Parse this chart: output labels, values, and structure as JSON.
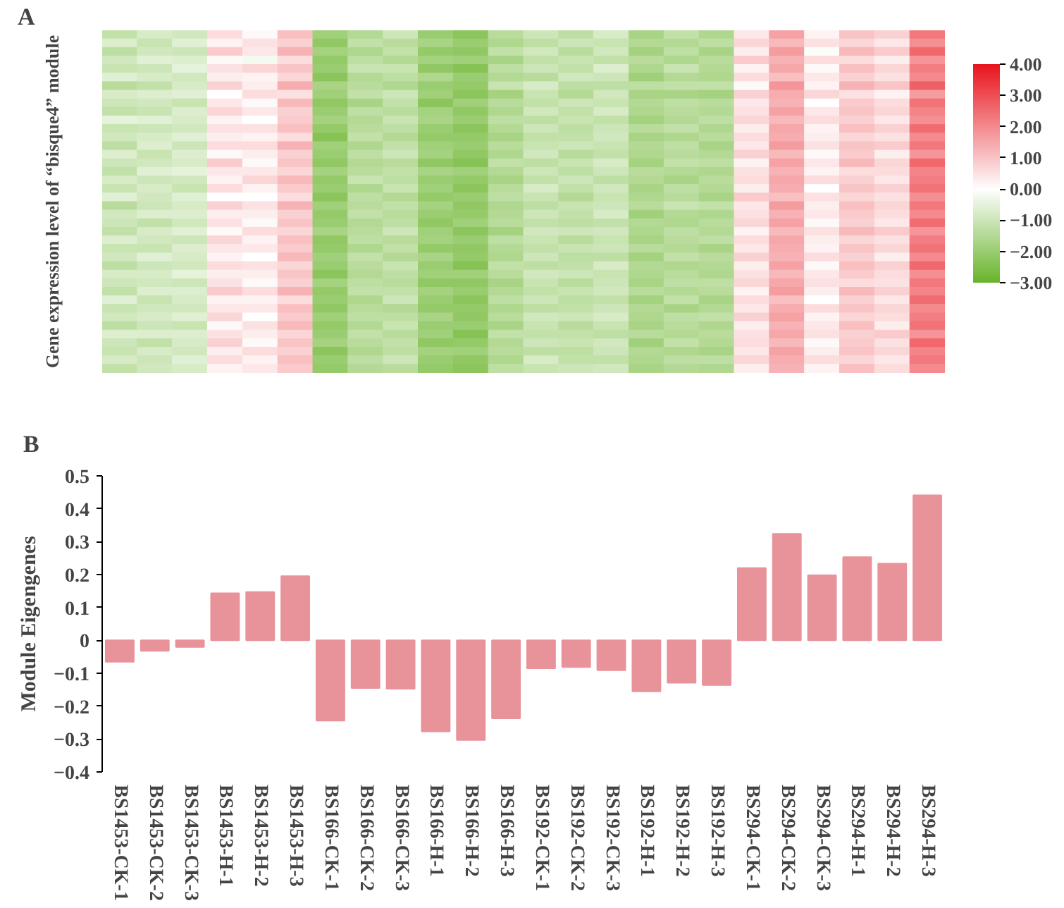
{
  "chart_data": [
    {
      "type": "heatmap",
      "title": "A",
      "ylabel": "Gene expression level of “bisque4” module",
      "categories": [
        null,
        null,
        null,
        null,
        null,
        null,
        null,
        null,
        null,
        null,
        null,
        null,
        null,
        null,
        null,
        null,
        null,
        null,
        null,
        null,
        null,
        null,
        null,
        null
      ],
      "y_categories": [
        null,
        null,
        null,
        null,
        null,
        null,
        null,
        null,
        null,
        null,
        null,
        null,
        null,
        null,
        null,
        null,
        null,
        null,
        null,
        null,
        null,
        null,
        null,
        null,
        null,
        null,
        null,
        null,
        null,
        null,
        null,
        null,
        null,
        null,
        null,
        null,
        null,
        null,
        null,
        null
      ],
      "cells": [
        [
          -1.2,
          -0.8,
          -0.9,
          0.6,
          0.1,
          1.1,
          -1.9,
          -1.5,
          -1.0,
          -2.0,
          -2.3,
          -1.4,
          -1.0,
          -1.3,
          -0.8,
          -1.7,
          -1.2,
          -1.6,
          0.4,
          1.6,
          0.2,
          1.0,
          0.8,
          2.3
        ],
        [
          -0.7,
          -1.1,
          -0.6,
          0.2,
          0.5,
          0.8,
          -2.2,
          -1.2,
          -1.4,
          -1.7,
          -2.0,
          -1.6,
          -1.3,
          -1.0,
          -1.1,
          -1.5,
          -1.5,
          -1.3,
          0.7,
          1.2,
          0.5,
          0.7,
          0.4,
          1.9
        ],
        [
          -1.3,
          -0.9,
          -1.0,
          0.9,
          0.4,
          1.3,
          -1.8,
          -1.6,
          -1.2,
          -2.1,
          -2.2,
          -1.2,
          -0.9,
          -1.4,
          -0.9,
          -1.8,
          -1.3,
          -1.7,
          0.3,
          1.7,
          -0.1,
          1.2,
          0.9,
          2.6
        ],
        [
          -0.9,
          -0.6,
          -0.7,
          0.1,
          -0.2,
          0.6,
          -2.1,
          -1.3,
          -1.5,
          -1.8,
          -1.9,
          -1.7,
          -1.2,
          -1.1,
          -1.2,
          -1.4,
          -1.6,
          -1.4,
          0.9,
          1.3,
          0.6,
          0.6,
          0.3,
          1.8
        ],
        [
          -1.1,
          -1.0,
          -0.5,
          0.5,
          0.7,
          1.0,
          -2.0,
          -1.1,
          -1.1,
          -2.2,
          -2.4,
          -1.3,
          -1.0,
          -1.2,
          -0.7,
          -1.6,
          -1.1,
          -1.5,
          0.2,
          1.5,
          0.1,
          1.1,
          0.7,
          2.2
        ],
        [
          -0.6,
          -0.8,
          -0.9,
          0.3,
          0.2,
          0.7,
          -2.3,
          -1.5,
          -1.3,
          -1.6,
          -2.0,
          -1.5,
          -1.4,
          -0.9,
          -1.0,
          -1.9,
          -1.5,
          -1.6,
          0.6,
          1.1,
          0.4,
          0.8,
          0.5,
          2.0
        ],
        [
          -1.4,
          -1.2,
          -0.8,
          0.8,
          0.3,
          1.4,
          -1.7,
          -1.4,
          -1.6,
          -2.0,
          -2.1,
          -1.1,
          -0.8,
          -1.3,
          -1.3,
          -1.3,
          -1.2,
          -1.2,
          0.1,
          1.8,
          0.2,
          1.3,
          1.0,
          2.7
        ],
        [
          -0.8,
          -0.7,
          -0.6,
          0.0,
          0.6,
          0.5,
          -1.9,
          -1.2,
          -1.0,
          -1.9,
          -2.3,
          -1.8,
          -1.1,
          -1.5,
          -0.9,
          -1.7,
          -1.7,
          -1.8,
          0.8,
          1.4,
          0.7,
          0.5,
          0.2,
          1.7
        ],
        [
          -1.0,
          -0.9,
          -1.1,
          0.4,
          0.1,
          1.2,
          -2.2,
          -1.7,
          -1.2,
          -2.3,
          -1.9,
          -1.4,
          -1.2,
          -1.0,
          -1.1,
          -1.5,
          -1.3,
          -1.4,
          0.4,
          1.3,
          0.0,
          0.9,
          0.6,
          2.4
        ],
        [
          -1.2,
          -1.1,
          -0.7,
          0.7,
          0.4,
          0.8,
          -2.0,
          -1.3,
          -1.4,
          -1.8,
          -2.2,
          -1.6,
          -0.9,
          -1.2,
          -0.8,
          -1.6,
          -1.4,
          -1.5,
          0.5,
          1.6,
          0.4,
          1.0,
          0.7,
          2.1
        ],
        [
          -0.5,
          -0.6,
          -0.8,
          0.2,
          0.0,
          0.9,
          -1.8,
          -1.5,
          -1.1,
          -1.7,
          -2.0,
          -1.3,
          -1.3,
          -1.1,
          -1.2,
          -1.8,
          -1.5,
          -1.3,
          0.7,
          1.2,
          0.6,
          0.8,
          0.4,
          1.9
        ],
        [
          -1.1,
          -1.0,
          -0.9,
          0.5,
          0.5,
          1.1,
          -2.1,
          -1.4,
          -1.3,
          -2.0,
          -2.3,
          -1.5,
          -1.0,
          -1.3,
          -1.0,
          -1.4,
          -1.2,
          -1.6,
          0.3,
          1.5,
          0.2,
          1.1,
          0.8,
          2.5
        ],
        [
          -0.9,
          -0.8,
          -0.6,
          0.3,
          0.2,
          0.6,
          -2.4,
          -1.2,
          -1.5,
          -2.1,
          -2.1,
          -1.7,
          -1.2,
          -1.2,
          -0.9,
          -1.7,
          -1.6,
          -1.4,
          0.6,
          1.4,
          0.3,
          0.7,
          0.5,
          2.0
        ],
        [
          -1.3,
          -0.7,
          -1.0,
          0.6,
          0.6,
          1.3,
          -1.9,
          -1.6,
          -1.2,
          -1.9,
          -2.0,
          -1.4,
          -1.1,
          -1.0,
          -1.1,
          -1.5,
          -1.3,
          -1.7,
          0.4,
          1.7,
          0.5,
          1.0,
          0.9,
          2.3
        ],
        [
          -0.7,
          -1.1,
          -0.7,
          0.1,
          0.3,
          0.8,
          -2.0,
          -1.3,
          -1.0,
          -1.8,
          -2.2,
          -1.6,
          -0.9,
          -1.4,
          -1.2,
          -1.6,
          -1.4,
          -1.5,
          0.8,
          1.2,
          0.1,
          0.9,
          0.3,
          1.8
        ],
        [
          -1.0,
          -0.9,
          -0.8,
          0.9,
          0.1,
          1.0,
          -2.2,
          -1.5,
          -1.4,
          -2.2,
          -2.4,
          -1.2,
          -1.3,
          -1.1,
          -0.8,
          -1.8,
          -1.2,
          -1.3,
          0.2,
          1.6,
          0.4,
          1.2,
          0.7,
          2.6
        ],
        [
          -1.2,
          -0.6,
          -0.5,
          0.4,
          0.4,
          0.7,
          -1.8,
          -1.4,
          -1.2,
          -1.7,
          -1.9,
          -1.5,
          -1.0,
          -1.3,
          -1.0,
          -1.4,
          -1.5,
          -1.6,
          0.5,
          1.3,
          0.2,
          0.6,
          0.6,
          2.1
        ],
        [
          -0.8,
          -1.0,
          -0.9,
          0.2,
          0.7,
          1.2,
          -2.1,
          -1.1,
          -1.3,
          -2.0,
          -2.1,
          -1.7,
          -1.2,
          -1.0,
          -1.3,
          -1.5,
          -1.7,
          -1.4,
          0.6,
          1.5,
          0.6,
          0.8,
          0.4,
          2.2
        ],
        [
          -1.1,
          -0.8,
          -1.1,
          0.6,
          0.2,
          0.9,
          -2.0,
          -1.6,
          -1.1,
          -1.9,
          -2.3,
          -1.4,
          -0.8,
          -1.2,
          -0.9,
          -1.7,
          -1.3,
          -1.5,
          0.3,
          1.4,
          0.0,
          1.0,
          0.8,
          2.4
        ],
        [
          -0.6,
          -0.9,
          -0.6,
          0.0,
          0.0,
          0.6,
          -2.3,
          -1.3,
          -1.5,
          -2.1,
          -2.0,
          -1.3,
          -1.1,
          -1.5,
          -1.1,
          -1.6,
          -1.4,
          -1.7,
          0.9,
          1.1,
          0.5,
          0.7,
          0.5,
          1.9
        ],
        [
          -1.4,
          -1.0,
          -0.8,
          0.8,
          0.5,
          1.3,
          -1.9,
          -1.4,
          -1.2,
          -1.8,
          -2.2,
          -1.6,
          -1.3,
          -1.1,
          -1.0,
          -1.4,
          -1.1,
          -1.2,
          0.4,
          1.7,
          0.3,
          1.1,
          0.7,
          2.3
        ],
        [
          -0.9,
          -0.7,
          -0.7,
          0.3,
          0.3,
          0.8,
          -2.1,
          -1.2,
          -1.4,
          -2.0,
          -2.1,
          -1.5,
          -1.0,
          -1.2,
          -0.8,
          -1.9,
          -1.5,
          -1.6,
          0.5,
          1.3,
          0.4,
          0.9,
          0.6,
          2.0
        ],
        [
          -1.0,
          -1.2,
          -0.9,
          0.5,
          0.1,
          1.0,
          -2.0,
          -1.5,
          -1.3,
          -2.2,
          -1.9,
          -1.4,
          -1.2,
          -1.3,
          -1.2,
          -1.5,
          -1.6,
          -1.4,
          0.7,
          1.6,
          0.1,
          0.8,
          0.4,
          2.5
        ],
        [
          -1.2,
          -0.8,
          -0.6,
          0.1,
          0.6,
          0.7,
          -1.7,
          -1.4,
          -1.0,
          -1.9,
          -2.3,
          -1.8,
          -0.9,
          -1.0,
          -0.9,
          -1.6,
          -1.3,
          -1.5,
          0.2,
          1.2,
          0.5,
          1.2,
          0.9,
          1.8
        ],
        [
          -0.7,
          -0.9,
          -1.0,
          0.7,
          0.2,
          1.1,
          -2.2,
          -1.3,
          -1.4,
          -1.8,
          -2.0,
          -1.3,
          -1.1,
          -1.4,
          -1.1,
          -1.7,
          -1.4,
          -1.3,
          0.6,
          1.5,
          0.3,
          0.7,
          0.5,
          2.2
        ],
        [
          -1.1,
          -1.1,
          -0.7,
          0.4,
          0.4,
          0.9,
          -2.1,
          -1.6,
          -1.2,
          -2.1,
          -2.2,
          -1.5,
          -1.2,
          -1.1,
          -1.0,
          -1.4,
          -1.5,
          -1.7,
          0.4,
          1.4,
          0.2,
          1.0,
          0.7,
          2.4
        ],
        [
          -0.9,
          -0.6,
          -0.8,
          0.2,
          0.0,
          1.2,
          -1.9,
          -1.2,
          -1.5,
          -1.7,
          -2.1,
          -1.6,
          -1.0,
          -1.3,
          -1.3,
          -1.8,
          -1.2,
          -1.4,
          0.8,
          1.3,
          0.6,
          0.8,
          0.3,
          2.0
        ],
        [
          -1.3,
          -1.0,
          -0.9,
          0.6,
          0.5,
          0.7,
          -2.0,
          -1.4,
          -1.1,
          -2.0,
          -2.4,
          -1.2,
          -1.3,
          -1.2,
          -0.8,
          -1.5,
          -1.6,
          -1.5,
          0.3,
          1.6,
          0.1,
          1.1,
          0.8,
          2.6
        ],
        [
          -0.8,
          -0.8,
          -0.5,
          0.3,
          0.3,
          1.0,
          -2.3,
          -1.5,
          -1.3,
          -1.9,
          -1.9,
          -1.4,
          -0.9,
          -1.0,
          -1.1,
          -1.6,
          -1.4,
          -1.6,
          0.5,
          1.2,
          0.4,
          0.9,
          0.6,
          1.9
        ],
        [
          -1.0,
          -0.9,
          -1.0,
          0.5,
          0.1,
          0.8,
          -1.8,
          -1.3,
          -1.4,
          -2.2,
          -2.2,
          -1.7,
          -1.1,
          -1.4,
          -1.0,
          -1.7,
          -1.3,
          -1.3,
          0.7,
          1.5,
          0.5,
          0.6,
          0.5,
          2.3
        ],
        [
          -1.2,
          -0.7,
          -0.7,
          0.9,
          0.6,
          1.3,
          -2.1,
          -1.2,
          -1.2,
          -1.8,
          -2.0,
          -1.5,
          -1.2,
          -1.1,
          -0.9,
          -1.4,
          -1.5,
          -1.4,
          0.2,
          1.7,
          0.3,
          1.2,
          0.8,
          2.1
        ],
        [
          -0.6,
          -1.1,
          -0.8,
          0.2,
          0.2,
          0.6,
          -2.0,
          -1.6,
          -1.0,
          -2.0,
          -2.3,
          -1.3,
          -1.0,
          -1.3,
          -1.2,
          -1.8,
          -1.2,
          -1.7,
          0.6,
          1.1,
          0.0,
          0.8,
          0.4,
          2.5
        ],
        [
          -1.1,
          -0.9,
          -0.9,
          0.4,
          0.4,
          1.1,
          -2.2,
          -1.4,
          -1.5,
          -2.1,
          -2.1,
          -1.6,
          -1.3,
          -1.2,
          -1.0,
          -1.5,
          -1.7,
          -1.5,
          0.4,
          1.4,
          0.6,
          1.0,
          0.7,
          2.0
        ],
        [
          -0.9,
          -0.8,
          -0.6,
          0.7,
          0.0,
          0.9,
          -1.9,
          -1.3,
          -1.3,
          -1.7,
          -2.2,
          -1.4,
          -0.9,
          -1.0,
          -0.8,
          -1.6,
          -1.3,
          -1.2,
          0.8,
          1.6,
          0.2,
          0.7,
          0.6,
          2.2
        ],
        [
          -1.3,
          -1.0,
          -1.1,
          0.1,
          0.5,
          1.2,
          -2.1,
          -1.5,
          -1.1,
          -2.0,
          -2.0,
          -1.7,
          -1.1,
          -1.4,
          -1.1,
          -1.7,
          -1.4,
          -1.6,
          0.3,
          1.3,
          0.4,
          1.1,
          0.3,
          2.4
        ],
        [
          -0.7,
          -0.7,
          -0.7,
          0.5,
          0.3,
          0.7,
          -2.0,
          -1.2,
          -1.4,
          -1.9,
          -2.4,
          -1.2,
          -1.2,
          -1.2,
          -1.3,
          -1.4,
          -1.5,
          -1.4,
          0.5,
          1.5,
          0.5,
          0.8,
          0.9,
          1.8
        ],
        [
          -1.0,
          -1.2,
          -0.8,
          0.8,
          0.1,
          1.0,
          -1.8,
          -1.4,
          -1.2,
          -2.2,
          -2.1,
          -1.5,
          -1.0,
          -1.1,
          -0.9,
          -1.9,
          -1.2,
          -1.5,
          0.6,
          1.2,
          0.1,
          0.9,
          0.5,
          2.6
        ],
        [
          -1.1,
          -0.8,
          -0.9,
          0.3,
          0.6,
          0.8,
          -2.3,
          -1.6,
          -1.3,
          -1.8,
          -1.9,
          -1.4,
          -1.3,
          -1.3,
          -1.0,
          -1.5,
          -1.6,
          -1.7,
          0.4,
          1.6,
          0.3,
          1.0,
          0.7,
          2.1
        ],
        [
          -0.8,
          -1.0,
          -0.6,
          0.6,
          0.2,
          1.1,
          -2.0,
          -1.3,
          -1.0,
          -2.0,
          -2.2,
          -1.6,
          -0.8,
          -1.2,
          -1.2,
          -1.6,
          -1.3,
          -1.3,
          0.7,
          1.4,
          0.6,
          0.7,
          0.4,
          2.3
        ],
        [
          -1.2,
          -0.9,
          -0.8,
          0.2,
          0.4,
          0.9,
          -2.1,
          -1.5,
          -1.4,
          -2.1,
          -2.3,
          -1.3,
          -1.1,
          -1.0,
          -0.9,
          -1.7,
          -1.5,
          -1.6,
          0.3,
          1.3,
          0.2,
          1.1,
          0.6,
          2.0
        ]
      ],
      "clim": [
        -3,
        4
      ],
      "cticks": [
        {
          "value": 4,
          "label": "4.00"
        },
        {
          "value": 3,
          "label": "3.00"
        },
        {
          "value": 2,
          "label": "2.00"
        },
        {
          "value": 1,
          "label": "1.00"
        },
        {
          "value": 0,
          "label": "0.00"
        },
        {
          "value": -1,
          "label": "−1.00"
        },
        {
          "value": -2,
          "label": "−2.00"
        },
        {
          "value": -3,
          "label": "−3.00"
        }
      ]
    },
    {
      "type": "bar",
      "title": "B",
      "ylabel": "Module Eigengenes",
      "categories": [
        "BS1453-CK-1",
        "BS1453-CK-2",
        "BS1453-CK-3",
        "BS1453-H-1",
        "BS1453-H-2",
        "BS1453-H-3",
        "BS166-CK-1",
        "BS166-CK-2",
        "BS166-CK-3",
        "BS166-H-1",
        "BS166-H-2",
        "BS166-H-3",
        "BS192-CK-1",
        "BS192-CK-2",
        "BS192-CK-3",
        "BS192-H-1",
        "BS192-H-2",
        "BS192-H-3",
        "BS294-CK-1",
        "BS294-CK-2",
        "BS294-CK-3",
        "BS294-H-1",
        "BS294-H-2",
        "BS294-H-3"
      ],
      "values": [
        -0.065,
        -0.032,
        -0.02,
        0.143,
        0.147,
        0.195,
        -0.244,
        -0.145,
        -0.147,
        -0.277,
        -0.303,
        -0.237,
        -0.085,
        -0.081,
        -0.091,
        -0.155,
        -0.129,
        -0.136,
        0.22,
        0.324,
        0.198,
        0.253,
        0.233,
        0.441
      ],
      "color": "#e8929a",
      "ylim": [
        -0.4,
        0.5
      ],
      "yticks": [
        0.5,
        0.4,
        0.3,
        0.2,
        0.1,
        0,
        {
          "value": -0.1,
          "label": "−0.1"
        },
        {
          "value": -0.2,
          "label": "−0.2"
        },
        {
          "value": -0.3,
          "label": "−0.3"
        },
        {
          "value": -0.4,
          "label": "−0.4"
        }
      ]
    }
  ]
}
